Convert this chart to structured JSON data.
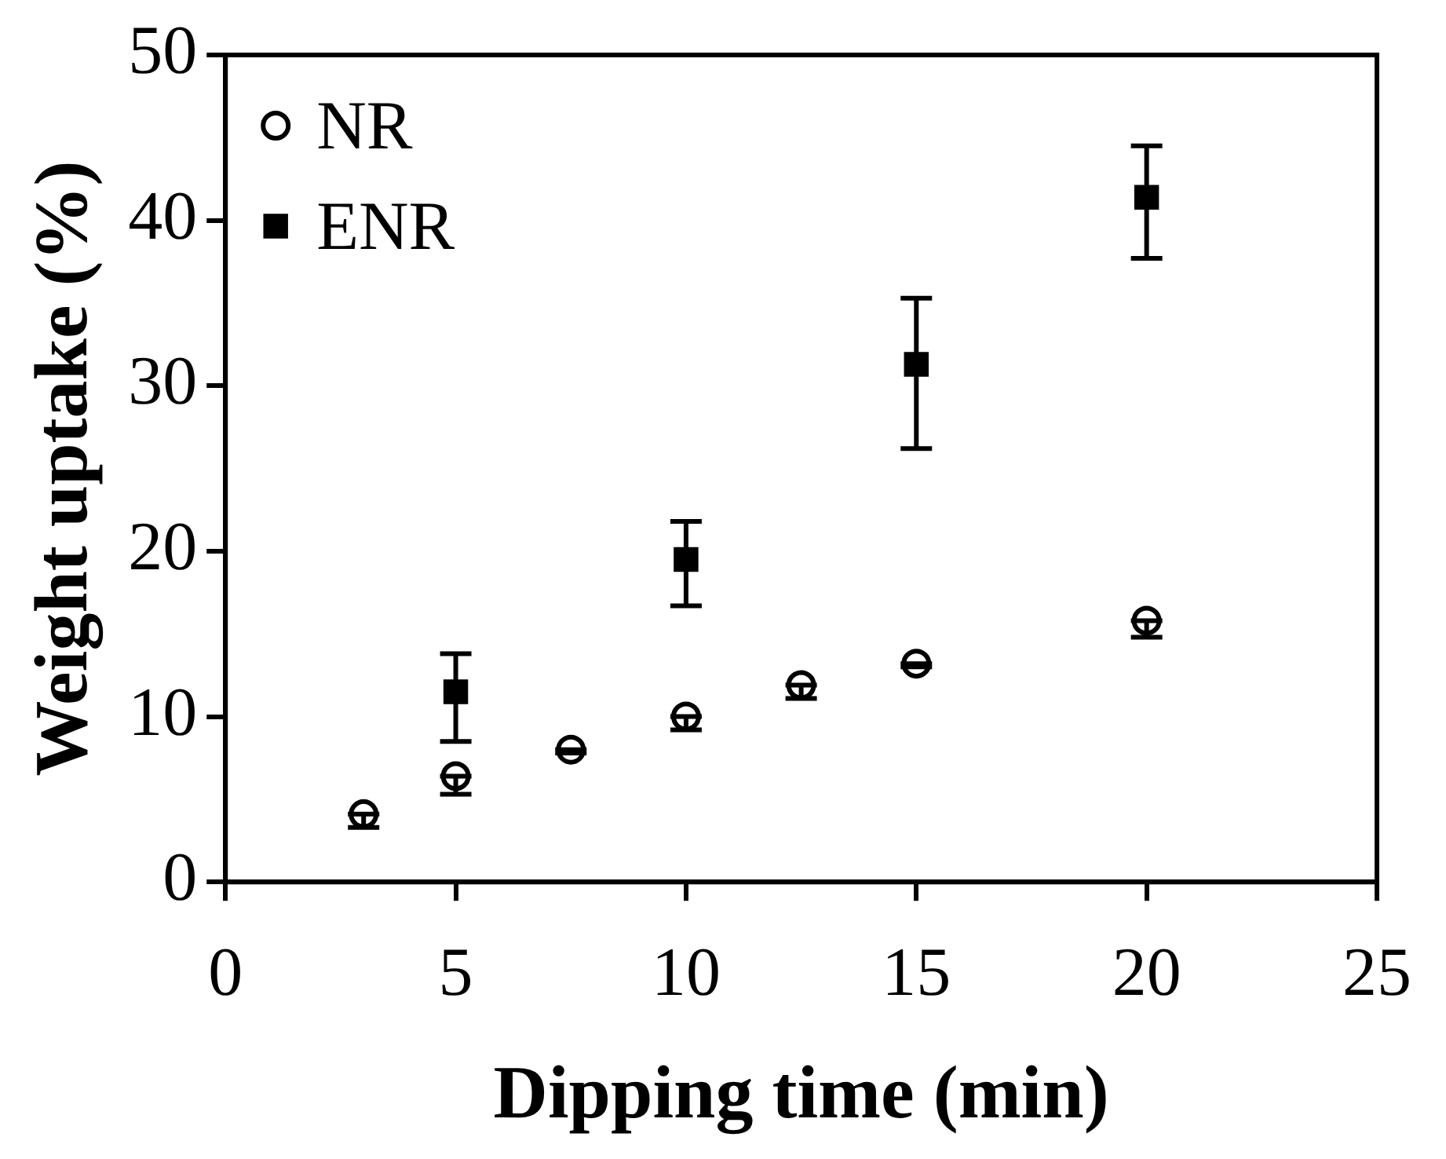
{
  "chart_data": {
    "type": "scatter",
    "xlabel": "Dipping time (min)",
    "ylabel": "Weight uptake (%)",
    "xlim": [
      0,
      25
    ],
    "xticks": [
      0,
      5,
      10,
      15,
      20,
      25
    ],
    "ylim": [
      0,
      50
    ],
    "yticks": [
      0,
      10,
      20,
      30,
      40,
      50
    ],
    "grid": false,
    "legend": "top left",
    "series": [
      {
        "name": "NR",
        "color": "#000000",
        "marker": "circle",
        "x": [
          3,
          5,
          7.5,
          10,
          12.5,
          15,
          20
        ],
        "values": [
          4.1,
          6.4,
          8.0,
          10.0,
          11.9,
          13.2,
          15.8
        ],
        "errors": [
          [
            3.3,
            4.1
          ],
          [
            5.3,
            6.4
          ],
          [
            7.8,
            8.0
          ],
          [
            9.2,
            10.0
          ],
          [
            11.1,
            11.9
          ],
          [
            13.0,
            13.2
          ],
          [
            14.8,
            15.8
          ]
        ]
      },
      {
        "name": "ENR",
        "color": "#000000",
        "marker": "square",
        "x": [
          5,
          10,
          15,
          20
        ],
        "values": [
          11.5,
          19.5,
          31.3,
          41.4
        ],
        "errors": [
          [
            8.5,
            13.8
          ],
          [
            16.7,
            21.8
          ],
          [
            26.2,
            35.3
          ],
          [
            37.7,
            44.5
          ]
        ]
      }
    ]
  }
}
